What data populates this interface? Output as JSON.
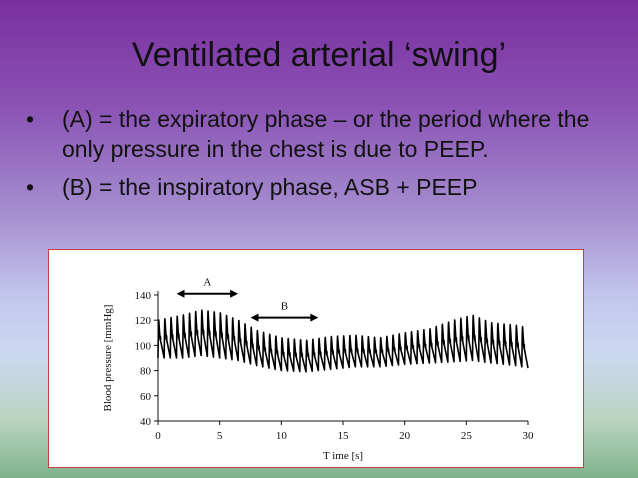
{
  "slide": {
    "title": "Ventilated arterial ‘swing’",
    "bullets": [
      "(A) = the expiratory phase – or the period where the only pressure in the chest is due to PEEP.",
      "(B) = the inspiratory phase, ASB + PEEP"
    ],
    "bullet_symbol": "•"
  },
  "chart_data": {
    "type": "line",
    "xlabel": "T ime [s]",
    "ylabel": "Blood pressure [mmHg]",
    "xlim": [
      0,
      30
    ],
    "ylim": [
      40,
      140
    ],
    "xticks": [
      0,
      5,
      10,
      15,
      20,
      25,
      30
    ],
    "yticks": [
      40,
      60,
      80,
      100,
      120,
      140
    ],
    "grid": false,
    "annotations": [
      {
        "label": "A",
        "x_start": 1.5,
        "x_end": 6.5,
        "y": 141
      },
      {
        "label": "B",
        "x_start": 7.5,
        "x_end": 13.0,
        "y": 122
      }
    ],
    "beat_period_s": 0.5,
    "x_range_s": [
      0,
      30
    ],
    "envelope": {
      "x": [
        0,
        2,
        3.5,
        5,
        6.5,
        8,
        10,
        12,
        14,
        16,
        18,
        20,
        22,
        24,
        25.5,
        27,
        29,
        30
      ],
      "systolic": [
        120,
        124,
        128,
        126,
        120,
        112,
        106,
        104,
        107,
        108,
        106,
        110,
        113,
        120,
        124,
        118,
        116,
        114
      ],
      "diastolic": [
        90,
        90,
        92,
        90,
        88,
        84,
        80,
        79,
        81,
        83,
        83,
        85,
        86,
        87,
        88,
        86,
        84,
        82
      ]
    }
  }
}
